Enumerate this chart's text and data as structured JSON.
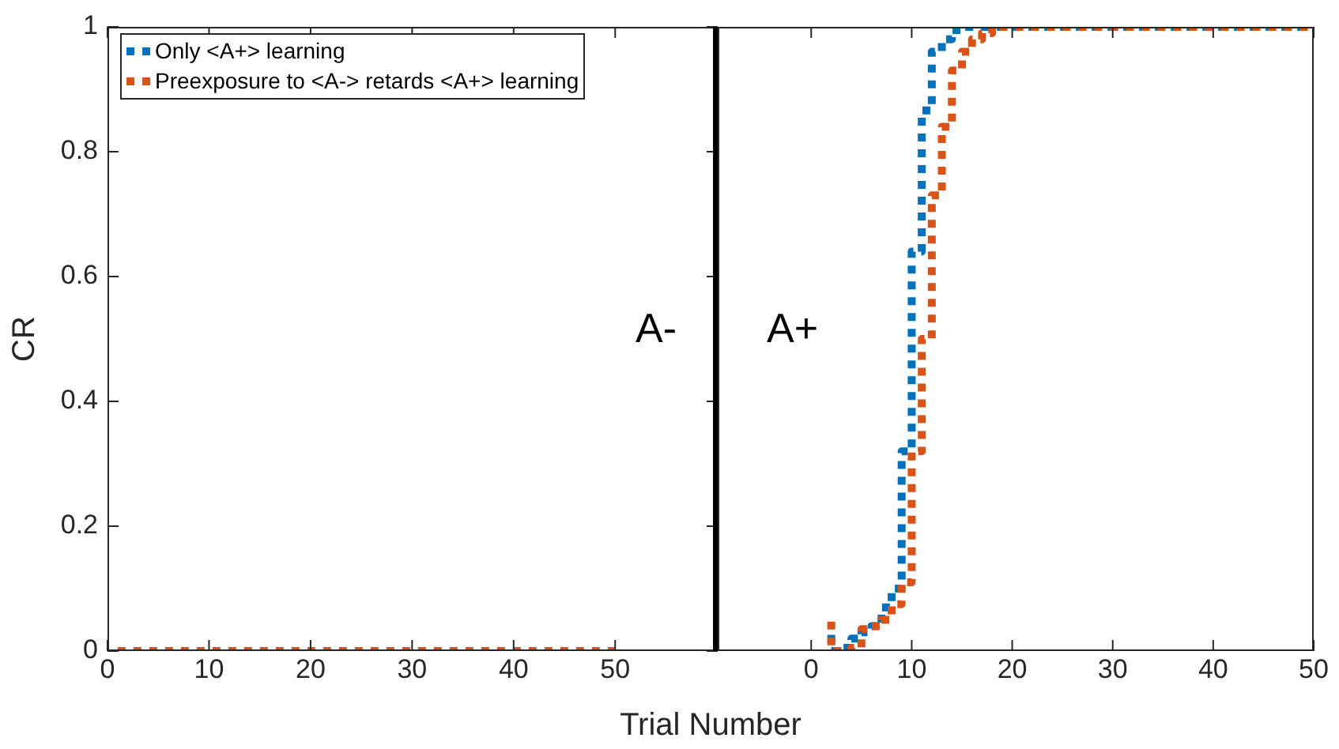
{
  "chart_data": [
    {
      "type": "step",
      "xlabel": "Trial Number",
      "ylabel": "CR",
      "xlim": [
        0,
        60.1
      ],
      "ylim": [
        0,
        1
      ],
      "xticks": [
        0,
        10,
        20,
        30,
        40,
        50
      ],
      "yticks": [
        0,
        0.2,
        0.4,
        0.6,
        0.8,
        1
      ],
      "grid": false,
      "legend": "top left",
      "line_style": "dotted",
      "marker": "none",
      "ref_lines": [
        {
          "axis": "x",
          "value": 60.1,
          "color": "#000000",
          "line_style": "solid"
        }
      ],
      "annotations": [
        "A-"
      ],
      "series": [
        {
          "name": "Only <A+> learning",
          "color": "#0072bd"
        },
        {
          "name": "Preexposure to <A-> retards <A+> learning",
          "color": "#d95319",
          "x": [
            1,
            50
          ],
          "values": [
            0,
            0
          ]
        }
      ]
    },
    {
      "type": "step",
      "xlim": [
        -9.3,
        50
      ],
      "ylim": [
        0,
        1
      ],
      "xticks": [
        0,
        10,
        20,
        30,
        40,
        50
      ],
      "tick_labels": "x",
      "grid": false,
      "line_style": "dotted",
      "marker": "none",
      "annotations": [
        "A+"
      ],
      "series": [
        {
          "color": "#0072bd",
          "x": [
            2,
            3,
            4,
            5,
            6,
            7,
            8,
            9,
            10,
            11,
            12,
            13,
            14,
            15,
            16,
            17,
            50
          ],
          "values": [
            0.026,
            0,
            0.005,
            0.02,
            0.03,
            0.04,
            0.07,
            0.1,
            0.32,
            0.64,
            0.866,
            0.96,
            0.98,
            0.995,
            1,
            1,
            1
          ]
        },
        {
          "color": "#d95319",
          "x": [
            2,
            3,
            4,
            5,
            6,
            7,
            8,
            9,
            10,
            11,
            12,
            13,
            14,
            15,
            16,
            17,
            18,
            19,
            20,
            50
          ],
          "values": [
            0.047,
            0,
            0,
            0.005,
            0.035,
            0.04,
            0.05,
            0.075,
            0.11,
            0.32,
            0.5,
            0.73,
            0.84,
            0.93,
            0.96,
            0.98,
            0.99,
            1,
            1,
            1
          ]
        }
      ]
    }
  ]
}
